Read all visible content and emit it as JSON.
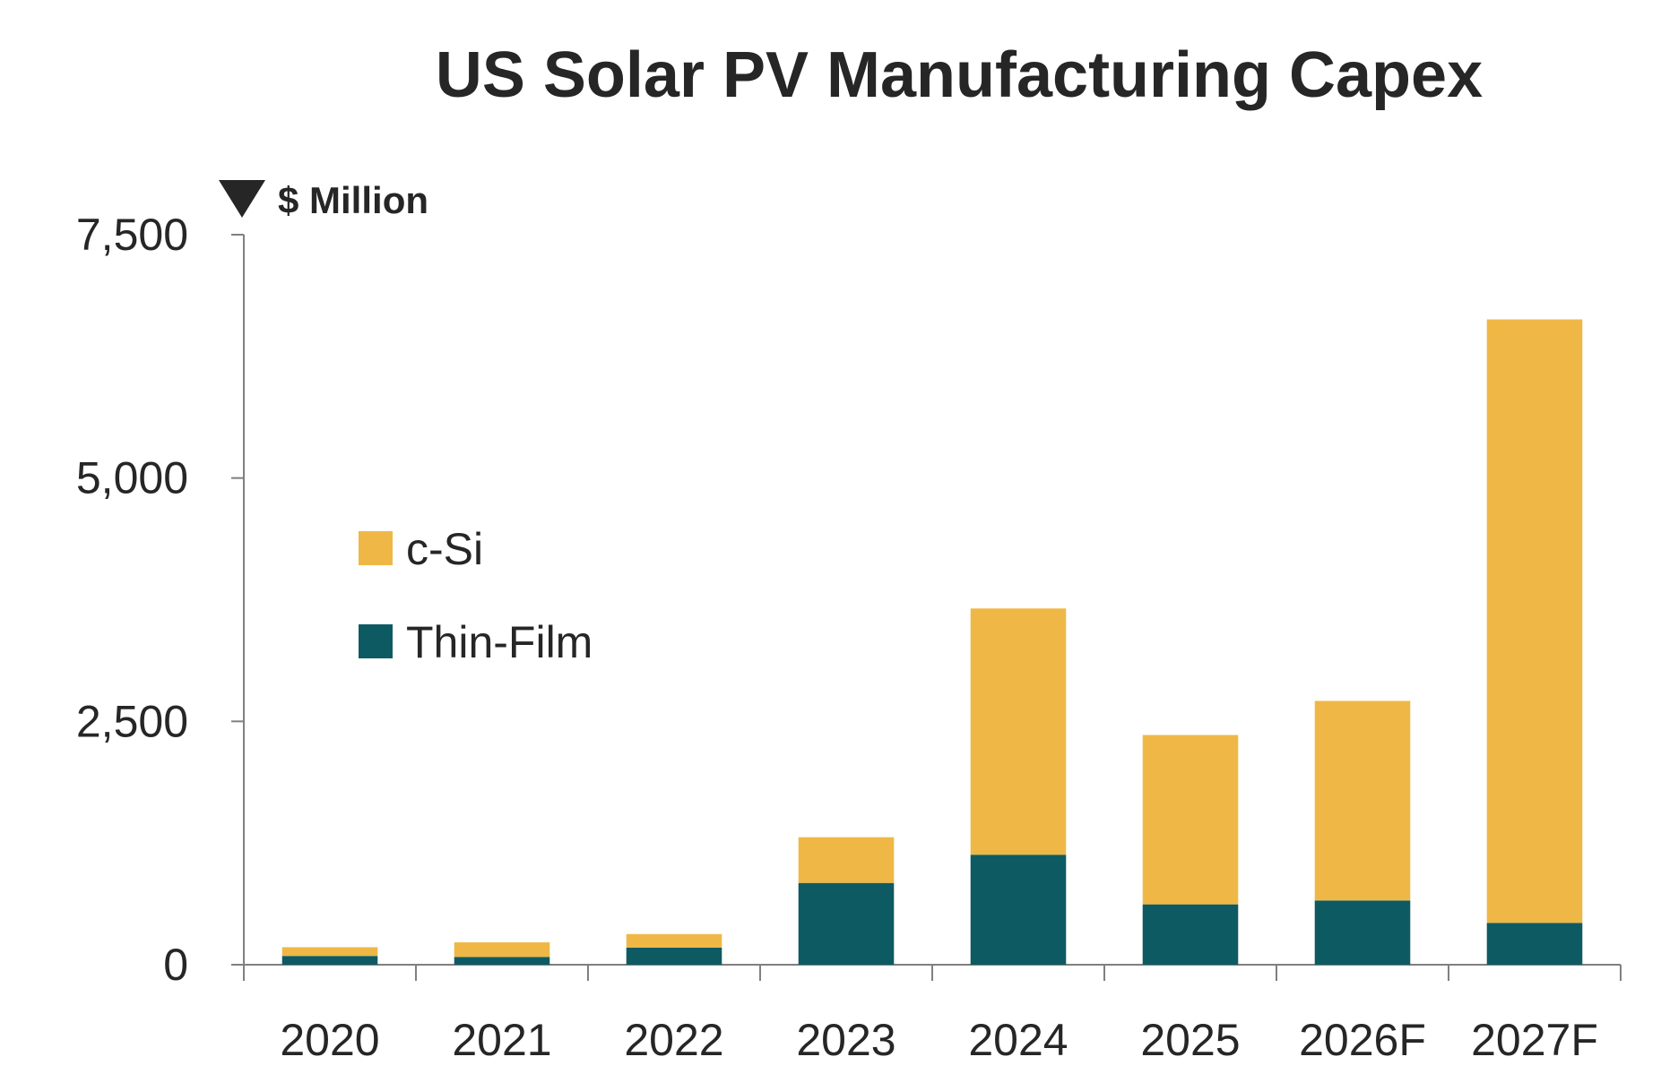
{
  "chart_data": {
    "type": "bar",
    "stacked": true,
    "title": "US Solar PV Manufacturing Capex",
    "unit_label": "$ Million",
    "xlabel": "",
    "ylabel": "",
    "ylim": [
      0,
      7500
    ],
    "yticks": [
      0,
      2500,
      5000,
      7500
    ],
    "ytick_labels": [
      "0",
      "2,500",
      "5,000",
      "7,500"
    ],
    "categories": [
      "2020",
      "2021",
      "2022",
      "2023",
      "2024",
      "2025",
      "2026F",
      "2027F"
    ],
    "series": [
      {
        "name": "Thin-Film",
        "color": "#0e5a63",
        "values": [
          90,
          80,
          175,
          840,
          1130,
          620,
          660,
          430
        ]
      },
      {
        "name": "c-Si",
        "color": "#efb846",
        "values": [
          90,
          150,
          140,
          470,
          2530,
          1740,
          2050,
          6200
        ]
      }
    ],
    "legend_order": [
      "c-Si",
      "Thin-Film"
    ],
    "legend_placement": "upper-left inside plot",
    "grid": false
  }
}
